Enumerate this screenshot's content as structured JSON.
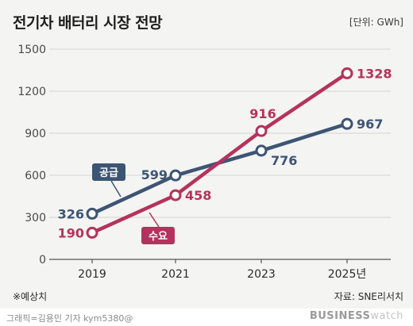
{
  "header": {
    "title": "전기차 배터리 시장 전망",
    "unit": "[단위: GWh]"
  },
  "footnote": "※예상치",
  "source": "자료: SNE리서치",
  "credit": "그래픽=김용민 기자 kym5380@",
  "brand": {
    "bold": "BUSINESS",
    "light": "watch"
  },
  "colors": {
    "supply": "#3d5573",
    "demand": "#b5325e",
    "grid": "#d4d4d0",
    "axis": "#555555"
  },
  "chart_data": {
    "type": "line",
    "title": "전기차 배터리 시장 전망",
    "x": [
      "2019",
      "2021",
      "2023",
      "2025년"
    ],
    "ylim": [
      0,
      1500
    ],
    "yticks": [
      0,
      300,
      600,
      900,
      1200,
      1500
    ],
    "grid": true,
    "series": [
      {
        "name": "공급",
        "values": [
          326,
          599,
          776,
          967
        ]
      },
      {
        "name": "수요",
        "values": [
          190,
          458,
          916,
          1328
        ]
      }
    ]
  }
}
